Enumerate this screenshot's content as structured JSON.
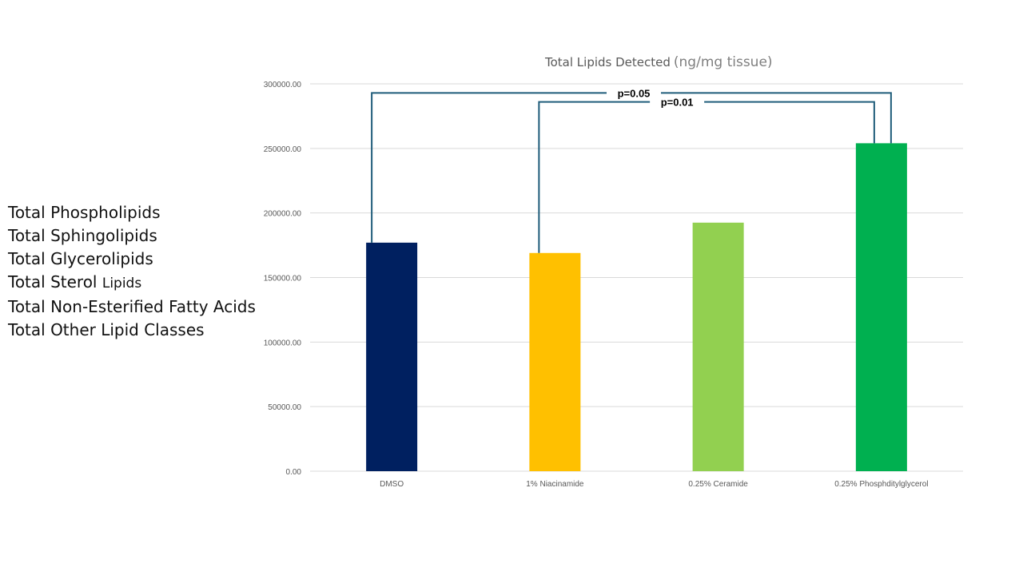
{
  "side_list": [
    {
      "main": "Total Phospholipids",
      "suffix": ""
    },
    {
      "main": "Total Sphingolipids",
      "suffix": ""
    },
    {
      "main": "Total Glycerolipids",
      "suffix": ""
    },
    {
      "main": "Total Sterol",
      "suffix": "Lipids"
    },
    {
      "main": "Total Non-Esterified Fatty Acids",
      "suffix": ""
    },
    {
      "main": "Total Other Lipid Classes",
      "suffix": ""
    }
  ],
  "chart_data": {
    "type": "bar",
    "title": "Total Lipids Detected",
    "title_unit": "(ng/mg tissue)",
    "categories": [
      "DMSO",
      "1% Niacinamide",
      "0.25% Ceramide",
      "0.25% Phosphditylglycerol"
    ],
    "values": [
      177000,
      169000,
      192500,
      254000
    ],
    "bar_colors": [
      "#002060",
      "#ffc000",
      "#92d050",
      "#00b050"
    ],
    "ylim": [
      0,
      300000
    ],
    "yticks": [
      "0.00",
      "50000.00",
      "100000.00",
      "150000.00",
      "200000.00",
      "250000.00",
      "300000.00"
    ],
    "ytick_values": [
      0,
      50000,
      100000,
      150000,
      200000,
      250000,
      300000
    ],
    "grid": true,
    "annotations": [
      {
        "label": "p=0.05",
        "from": 0,
        "to": 3,
        "level": 293000
      },
      {
        "label": "p=0.01",
        "from": 1,
        "to": 3,
        "level": 286000
      }
    ],
    "bracket_color": "#1f5c7a"
  }
}
